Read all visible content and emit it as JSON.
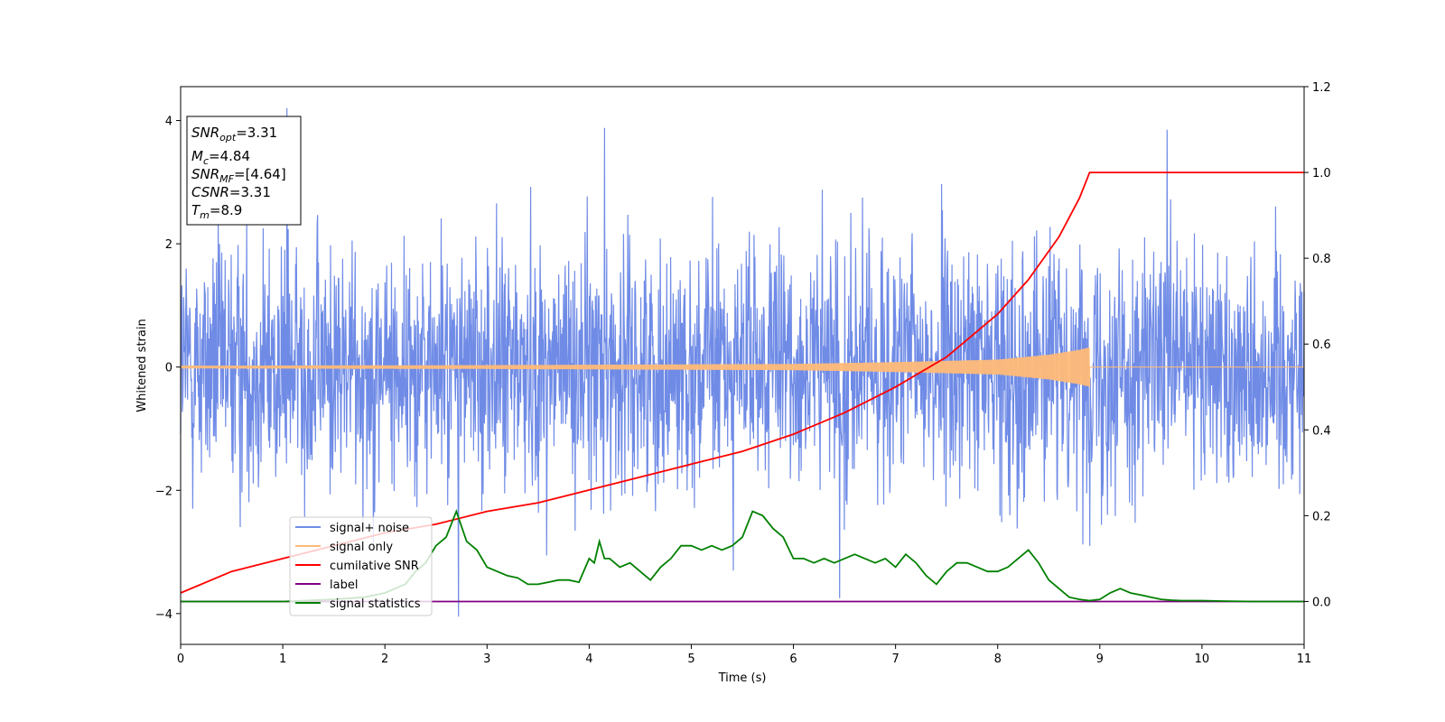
{
  "chart_data": {
    "type": "line",
    "xlabel": "Time (s)",
    "ylabel": "Whitened strain",
    "xlim": [
      0,
      11
    ],
    "ylim_left": [
      -4.5,
      4.55
    ],
    "ylim_right": [
      -0.1,
      1.2
    ],
    "x_ticks": [
      "0",
      "1",
      "2",
      "3",
      "4",
      "5",
      "6",
      "7",
      "8",
      "9",
      "10",
      "11"
    ],
    "y_left_ticks": [
      "−4",
      "−2",
      "0",
      "2",
      "4"
    ],
    "y_right_ticks": [
      "0.0",
      "0.2",
      "0.4",
      "0.6",
      "0.8",
      "1.0",
      "1.2"
    ],
    "grid": false,
    "legend_position": "lower-left",
    "annotation": {
      "snr_opt": {
        "base": "SNR",
        "sub": "opt",
        "value": "=3.31"
      },
      "mc": {
        "base": "M",
        "sub": "c",
        "value": "=4.84"
      },
      "snr_mf": {
        "base": "SNR",
        "sub": "MF",
        "value": "=[4.64]"
      },
      "csnr": {
        "base": "CSNR",
        "value": "=3.31"
      },
      "tm": {
        "base": "T",
        "sub": "m",
        "value": "=8.9"
      }
    },
    "merger_time": 8.9,
    "series": [
      {
        "name": "signal+ noise",
        "axis": "left",
        "color": "#6f8be6",
        "kind": "noise",
        "amplitude_sigma": 1.0,
        "notable_peaks": [
          [
            1.04,
            4.2
          ],
          [
            4.15,
            3.88
          ],
          [
            9.66,
            3.85
          ],
          [
            2.72,
            -4.05
          ],
          [
            6.45,
            -3.75
          ]
        ]
      },
      {
        "name": "signal only",
        "axis": "left",
        "color": "#ffbb78",
        "kind": "chirp",
        "envelope": [
          [
            0,
            0.02
          ],
          [
            3,
            0.03
          ],
          [
            6,
            0.05
          ],
          [
            7,
            0.08
          ],
          [
            8,
            0.12
          ],
          [
            8.5,
            0.2
          ],
          [
            8.8,
            0.28
          ],
          [
            8.9,
            0.32
          ],
          [
            8.9,
            0.0
          ],
          [
            11,
            0.0
          ]
        ]
      },
      {
        "name": "cumilative SNR",
        "axis": "right",
        "color": "#ff0000",
        "x": [
          0,
          0.5,
          1,
          1.5,
          2,
          2.5,
          3,
          3.5,
          4,
          4.5,
          5,
          5.5,
          6,
          6.5,
          7,
          7.5,
          8,
          8.3,
          8.6,
          8.8,
          8.9,
          9,
          10,
          11
        ],
        "y": [
          0.02,
          0.07,
          0.1,
          0.13,
          0.16,
          0.18,
          0.21,
          0.23,
          0.26,
          0.29,
          0.32,
          0.35,
          0.39,
          0.44,
          0.5,
          0.57,
          0.67,
          0.75,
          0.85,
          0.94,
          1.0,
          1.0,
          1.0,
          1.0
        ]
      },
      {
        "name": "label",
        "axis": "right",
        "color": "#800080",
        "x": [
          0,
          11
        ],
        "y": [
          0.0,
          0.0
        ]
      },
      {
        "name": "signal statistics",
        "axis": "right",
        "color": "#008000",
        "x": [
          0,
          1,
          1.5,
          1.8,
          2.0,
          2.2,
          2.3,
          2.4,
          2.5,
          2.6,
          2.7,
          2.8,
          2.9,
          3.0,
          3.1,
          3.2,
          3.3,
          3.4,
          3.5,
          3.6,
          3.7,
          3.8,
          3.9,
          4.0,
          4.05,
          4.1,
          4.15,
          4.2,
          4.3,
          4.4,
          4.5,
          4.6,
          4.7,
          4.8,
          4.9,
          5.0,
          5.1,
          5.2,
          5.3,
          5.4,
          5.5,
          5.6,
          5.7,
          5.8,
          5.9,
          6.0,
          6.1,
          6.2,
          6.3,
          6.4,
          6.5,
          6.6,
          6.7,
          6.8,
          6.9,
          7.0,
          7.1,
          7.2,
          7.3,
          7.4,
          7.5,
          7.6,
          7.7,
          7.8,
          7.9,
          8.0,
          8.1,
          8.2,
          8.3,
          8.4,
          8.5,
          8.6,
          8.7,
          8.8,
          8.9,
          9.0,
          9.1,
          9.2,
          9.3,
          9.4,
          9.5,
          9.6,
          9.7,
          9.8,
          9.9,
          10.0,
          10.2,
          10.5,
          11.0
        ],
        "y": [
          0.0,
          0.0,
          0.005,
          0.01,
          0.02,
          0.04,
          0.07,
          0.09,
          0.13,
          0.15,
          0.21,
          0.14,
          0.12,
          0.08,
          0.07,
          0.06,
          0.055,
          0.04,
          0.04,
          0.045,
          0.05,
          0.05,
          0.045,
          0.1,
          0.09,
          0.14,
          0.1,
          0.1,
          0.08,
          0.09,
          0.07,
          0.05,
          0.08,
          0.1,
          0.13,
          0.13,
          0.12,
          0.13,
          0.12,
          0.13,
          0.15,
          0.21,
          0.2,
          0.17,
          0.15,
          0.1,
          0.1,
          0.09,
          0.1,
          0.09,
          0.1,
          0.11,
          0.1,
          0.09,
          0.1,
          0.08,
          0.11,
          0.09,
          0.06,
          0.04,
          0.07,
          0.09,
          0.09,
          0.08,
          0.07,
          0.07,
          0.08,
          0.1,
          0.12,
          0.09,
          0.05,
          0.03,
          0.01,
          0.005,
          0.002,
          0.005,
          0.02,
          0.03,
          0.02,
          0.015,
          0.01,
          0.005,
          0.003,
          0.002,
          0.002,
          0.002,
          0.001,
          0.0,
          0.0
        ]
      }
    ]
  }
}
